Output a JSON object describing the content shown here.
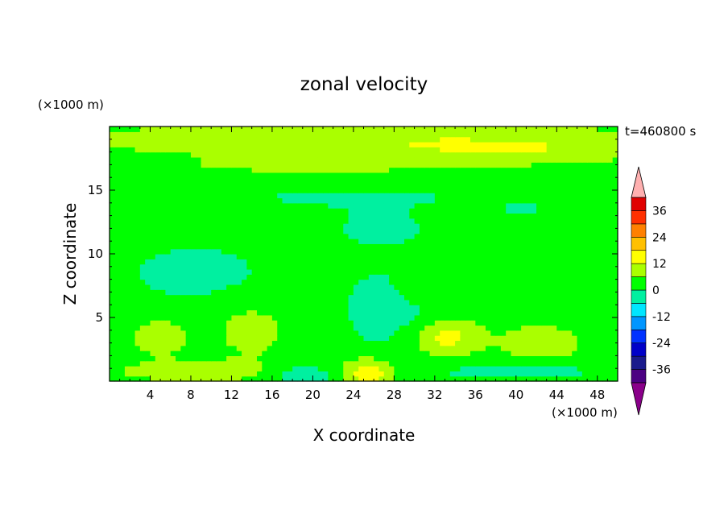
{
  "chart_data": {
    "type": "heatmap",
    "title": "zonal velocity",
    "xlabel": "X coordinate",
    "ylabel": "Z coordinate",
    "x_unit_label": "(×1000 m)",
    "y_unit_label": "(×1000 m)",
    "time_label": "t=460800 s",
    "xlim": [
      0,
      50
    ],
    "ylim": [
      0,
      20
    ],
    "x_ticks": [
      4,
      8,
      12,
      16,
      20,
      24,
      28,
      32,
      36,
      40,
      44,
      48
    ],
    "y_ticks": [
      5,
      10,
      15
    ],
    "colorbar": {
      "levels": [
        -42,
        -36,
        -30,
        -24,
        -18,
        -12,
        -6,
        0,
        6,
        12,
        18,
        24,
        30,
        36,
        42
      ],
      "labels": [
        -36,
        -24,
        -12,
        0,
        12,
        24,
        36
      ],
      "colors": [
        "#4b0082",
        "#1a1a8c",
        "#0000c8",
        "#0032ff",
        "#0096ff",
        "#00e6ff",
        "#00f0a0",
        "#00ff00",
        "#aaff00",
        "#ffff00",
        "#ffc000",
        "#ff8000",
        "#ff3000",
        "#e00000"
      ],
      "under_color": "#8a008a",
      "over_color": "#ffb0b0"
    },
    "field": {
      "background_value": 3,
      "features": [
        {
          "x": 25,
          "z": 19.0,
          "rx": 30,
          "rz": 1.2,
          "v": 8
        },
        {
          "x": 40,
          "z": 18.0,
          "rx": 12,
          "rz": 1.0,
          "v": 6
        },
        {
          "x": 20,
          "z": 17.0,
          "rx": 14,
          "rz": 0.8,
          "v": 5
        },
        {
          "x": 27,
          "z": 14.5,
          "rx": 24,
          "rz": 1.3,
          "v": -3
        },
        {
          "x": 7,
          "z": 12.5,
          "rx": 6,
          "rz": 1.6,
          "v": -2
        },
        {
          "x": 18,
          "z": 10.0,
          "rx": 10,
          "rz": 5.5,
          "v": -1
        },
        {
          "x": 8,
          "z": 8.5,
          "rx": 6,
          "rz": 2.0,
          "v": -6
        },
        {
          "x": 28,
          "z": 5.5,
          "rx": 5,
          "rz": 3.5,
          "v": -6
        },
        {
          "x": 27,
          "z": 12.0,
          "rx": 5,
          "rz": 1.5,
          "v": -4
        },
        {
          "x": 44,
          "z": 8.0,
          "rx": 5,
          "rz": 2.0,
          "v": -2
        },
        {
          "x": 42,
          "z": 13.0,
          "rx": 5,
          "rz": 1.2,
          "v": -3
        },
        {
          "x": 14,
          "z": 4.0,
          "rx": 4,
          "rz": 2.5,
          "v": 5
        },
        {
          "x": 5,
          "z": 3.5,
          "rx": 3,
          "rz": 1.5,
          "v": 6
        },
        {
          "x": 33,
          "z": 3.5,
          "rx": 3.5,
          "rz": 1.5,
          "v": 12
        },
        {
          "x": 42.5,
          "z": 3.0,
          "rx": 3.5,
          "rz": 1.3,
          "v": 9
        },
        {
          "x": 25.5,
          "z": 0.6,
          "rx": 2.5,
          "rz": 1.2,
          "v": 14
        },
        {
          "x": 8,
          "z": 0.8,
          "rx": 8,
          "rz": 0.9,
          "v": 6
        },
        {
          "x": 40,
          "z": 0.8,
          "rx": 10,
          "rz": 0.8,
          "v": -5
        },
        {
          "x": 19,
          "z": 0.5,
          "rx": 3,
          "rz": 0.7,
          "v": -8
        },
        {
          "x": 30,
          "z": 7.5,
          "rx": 2,
          "rz": 1.5,
          "v": 5
        },
        {
          "x": 46,
          "z": 12.5,
          "rx": 4,
          "rz": 1.5,
          "v": 3
        }
      ]
    }
  }
}
